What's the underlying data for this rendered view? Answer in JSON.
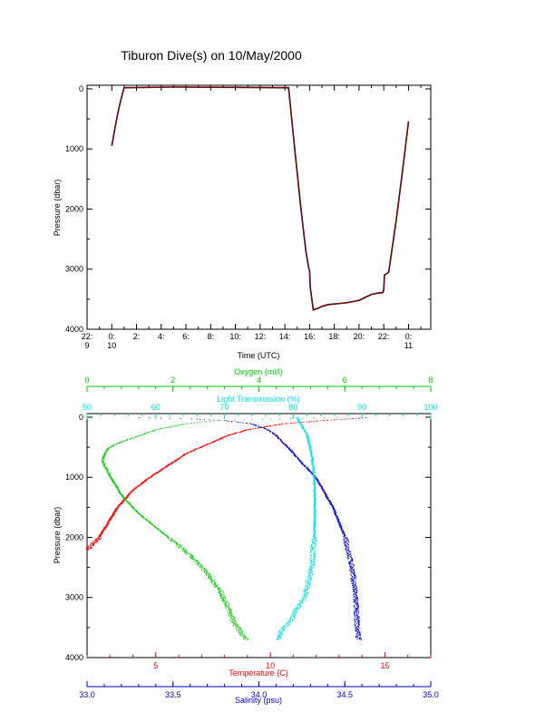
{
  "title": "Tiburon Dive(s) on 10/May/2000",
  "colors": {
    "axis": "#000000",
    "depth_trace": "#cc0000",
    "temperature": "#ff0000",
    "salinity": "#0000cc",
    "oxygen": "#00cc00",
    "light_transmission": "#00e0e0"
  },
  "chart_data": [
    {
      "type": "line",
      "title": "Tiburon Dive(s) on 10/May/2000",
      "xlabel": "Time (UTC)",
      "ylabel": "Pressure (dbar)",
      "xlim": [
        -2,
        25.8
      ],
      "ylim": [
        4000,
        -60
      ],
      "y_reversed": true,
      "x_ticks": [
        {
          "v": -2,
          "line1": "22:",
          "line2": "9"
        },
        {
          "v": 0,
          "line1": "0:",
          "line2": "10"
        },
        {
          "v": 2,
          "line1": "2:",
          "line2": ""
        },
        {
          "v": 4,
          "line1": "4:",
          "line2": ""
        },
        {
          "v": 6,
          "line1": "6:",
          "line2": ""
        },
        {
          "v": 8,
          "line1": "8:",
          "line2": ""
        },
        {
          "v": 10,
          "line1": "10:",
          "line2": ""
        },
        {
          "v": 12,
          "line1": "12:",
          "line2": ""
        },
        {
          "v": 14,
          "line1": "14:",
          "line2": ""
        },
        {
          "v": 16,
          "line1": "16:",
          "line2": ""
        },
        {
          "v": 18,
          "line1": "18:",
          "line2": ""
        },
        {
          "v": 20,
          "line1": "20:",
          "line2": ""
        },
        {
          "v": 22,
          "line1": "22:",
          "line2": ""
        },
        {
          "v": 24,
          "line1": "0:",
          "line2": "11"
        }
      ],
      "y_ticks": [
        0,
        1000,
        2000,
        3000,
        4000
      ],
      "series": [
        {
          "x": [
            0.0,
            0.3,
            0.6,
            0.9,
            1.0,
            5.0,
            10.0,
            14.3,
            14.8,
            15.3,
            15.7,
            15.95,
            16.0,
            16.05,
            16.3,
            16.7,
            17.0,
            17.5,
            18.0,
            18.5,
            19.0,
            19.5,
            20.0,
            20.5,
            21.0,
            21.5,
            21.9,
            22.0,
            22.05,
            22.4,
            23.0,
            23.5,
            24.0
          ],
          "y": [
            950,
            600,
            300,
            50,
            -20,
            -30,
            -25,
            -20,
            1000,
            2000,
            2700,
            3000,
            3020,
            3300,
            3680,
            3650,
            3620,
            3590,
            3580,
            3570,
            3560,
            3540,
            3520,
            3470,
            3420,
            3400,
            3390,
            3350,
            3100,
            3050,
            2200,
            1400,
            540
          ]
        }
      ]
    },
    {
      "type": "scatter",
      "ylabel": "Pressure (dbar)",
      "ylim": [
        4000,
        -60
      ],
      "y_reversed": true,
      "y_ticks": [
        0,
        1000,
        2000,
        3000,
        4000
      ],
      "axes": [
        {
          "label": "Oxygen (ml/l)",
          "position": "top",
          "range": [
            0,
            8
          ],
          "ticks": [
            0,
            2,
            4,
            6,
            8
          ],
          "color": "#00cc00"
        },
        {
          "label": "Light Transmission (%)",
          "position": "top",
          "range": [
            50,
            100
          ],
          "ticks": [
            50,
            60,
            70,
            80,
            90,
            100
          ],
          "color": "#00e0e0"
        },
        {
          "label": "Temperature (C)",
          "position": "bottom",
          "range": [
            2,
            17
          ],
          "ticks": [
            5,
            10,
            15
          ],
          "color": "#ff0000"
        },
        {
          "label": "Salinity (psu)",
          "position": "bottom",
          "range": [
            33.0,
            35.0
          ],
          "ticks": [
            "33.0",
            "33.5",
            "34.0",
            "34.5",
            "35.0"
          ],
          "color": "#0000cc"
        }
      ],
      "series": [
        {
          "name": "Temperature (C)",
          "axis": "Temperature (C)",
          "p": [
            0,
            50,
            100,
            200,
            300,
            400,
            500,
            600,
            700,
            800,
            1000,
            1200,
            1500,
            2000,
            2200
          ],
          "v": [
            14.2,
            12.2,
            10.6,
            9.0,
            8.1,
            7.5,
            6.9,
            6.3,
            5.9,
            5.5,
            4.7,
            4.0,
            3.3,
            2.5,
            2.0
          ]
        },
        {
          "name": "Salinity (psu)",
          "axis": "Salinity (psu)",
          "p": [
            0,
            20,
            50,
            100,
            200,
            300,
            400,
            500,
            700,
            1000,
            1500,
            2000,
            2500,
            3000,
            3500,
            3700
          ],
          "v": [
            33.3,
            33.6,
            33.8,
            33.95,
            34.05,
            34.1,
            34.13,
            34.17,
            34.23,
            34.33,
            34.43,
            34.5,
            34.54,
            34.56,
            34.57,
            34.58
          ]
        },
        {
          "name": "Oxygen (ml/l)",
          "axis": "Oxygen (ml/l)",
          "p": [
            0,
            20,
            50,
            100,
            200,
            300,
            400,
            500,
            600,
            700,
            800,
            1000,
            1300,
            1600,
            2000,
            2300,
            2600,
            2900,
            3200,
            3400,
            3500,
            3600,
            3700
          ],
          "v": [
            5.8,
            4.5,
            3.0,
            2.3,
            1.6,
            1.2,
            0.8,
            0.5,
            0.4,
            0.35,
            0.4,
            0.55,
            0.8,
            1.2,
            1.9,
            2.4,
            2.8,
            3.1,
            3.3,
            3.4,
            3.5,
            3.6,
            3.7
          ]
        },
        {
          "name": "Light Transmission (%)",
          "axis": "Light Transmission (%)",
          "p": [
            0,
            100,
            300,
            600,
            1000,
            1500,
            2000,
            2500,
            2800,
            3000,
            3200,
            3400,
            3500,
            3600,
            3700
          ],
          "v": [
            80.5,
            81.0,
            82.0,
            82.6,
            83.0,
            83.1,
            83.0,
            82.6,
            82.0,
            81.5,
            80.3,
            79.5,
            78.5,
            78.0,
            77.8
          ]
        }
      ]
    }
  ]
}
